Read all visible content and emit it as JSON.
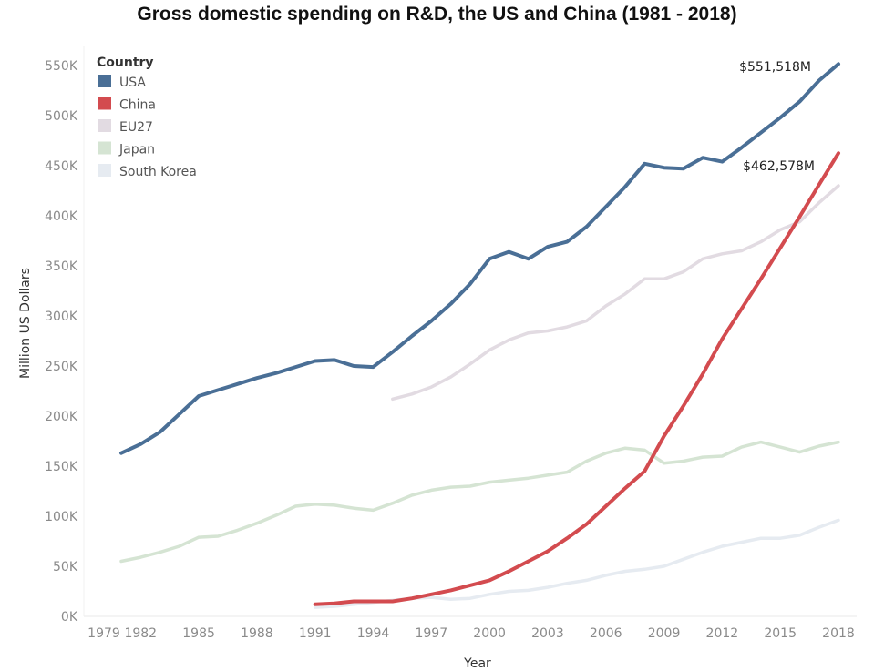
{
  "chart_data": {
    "type": "line",
    "title": "Gross domestic spending on R&D, the US and China (1981 - 2018)",
    "xlabel": "Year",
    "ylabel": "Million US Dollars",
    "xlim": [
      1979,
      2018
    ],
    "ylim": [
      0,
      550000
    ],
    "x_ticks": [
      "1979",
      "1982",
      "1985",
      "1988",
      "1991",
      "1994",
      "1997",
      "2000",
      "2003",
      "2006",
      "2009",
      "2012",
      "2015",
      "2018"
    ],
    "y_ticks": [
      "0K",
      "50K",
      "100K",
      "150K",
      "200K",
      "250K",
      "300K",
      "350K",
      "400K",
      "450K",
      "500K",
      "550K"
    ],
    "grid": false,
    "legend": {
      "title": "Country",
      "placement": "top-left"
    },
    "series": [
      {
        "name": "USA",
        "color": "#4a6f96",
        "start": 1981,
        "values": [
          163,
          172,
          184,
          202,
          220,
          226,
          232,
          238,
          243,
          249,
          255,
          256,
          250,
          249,
          264,
          280,
          295,
          312,
          332,
          357,
          364,
          357,
          369,
          374,
          389,
          409,
          429,
          452,
          448,
          447,
          458,
          454,
          468,
          483,
          498,
          514,
          535,
          551.518
        ]
      },
      {
        "name": "China",
        "color": "#d34b4f",
        "start": 1991,
        "values": [
          12,
          13,
          15,
          15,
          15,
          18,
          22,
          26,
          31,
          36,
          45,
          55,
          65,
          78,
          92,
          110,
          128,
          145,
          180,
          210,
          242,
          277,
          307,
          337,
          368,
          399,
          431,
          462.578
        ]
      },
      {
        "name": "EU27",
        "color": "#e2dbe2",
        "start": 1995,
        "values": [
          217,
          222,
          229,
          239,
          252,
          266,
          276,
          283,
          285,
          289,
          295,
          310,
          322,
          337,
          337,
          344,
          357,
          362,
          365,
          374,
          386,
          394,
          413,
          430
        ]
      },
      {
        "name": "Japan",
        "color": "#d5e4d3",
        "start": 1981,
        "values": [
          55,
          59,
          64,
          70,
          79,
          80,
          86,
          93,
          101,
          110,
          112,
          111,
          108,
          106,
          113,
          121,
          126,
          129,
          130,
          134,
          136,
          138,
          141,
          144,
          155,
          163,
          168,
          166,
          153,
          155,
          159,
          160,
          169,
          174,
          169,
          164,
          170,
          174
        ]
      },
      {
        "name": "South Korea",
        "color": "#e6ebf1",
        "start": 1991,
        "values": [
          9,
          10,
          12,
          14,
          16,
          18,
          19,
          17,
          18,
          22,
          25,
          26,
          29,
          33,
          36,
          41,
          45,
          47,
          50,
          57,
          64,
          70,
          74,
          78,
          78,
          81,
          89,
          96
        ]
      }
    ],
    "value_unit_in_values": "thousand million US dollars (K)",
    "annotations": [
      {
        "series": "USA",
        "year": 2018,
        "text": "$551,518M"
      },
      {
        "series": "China",
        "year": 2018,
        "text": "$462,578M"
      }
    ]
  }
}
